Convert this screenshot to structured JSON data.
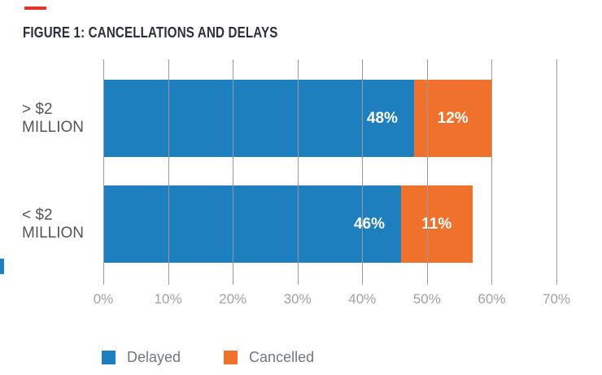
{
  "title": "FIGURE 1: CANCELLATIONS AND DELAYS",
  "colors": {
    "delayed": "#1E7FBF",
    "cancelled": "#F0712C",
    "title": "#2B2F3A",
    "category": "#53575C",
    "grid": "#97999B",
    "tick": "#9EA1A5",
    "legend_text": "#73777C",
    "red_dash": "#E8332B"
  },
  "chart_data": {
    "type": "bar",
    "orientation": "horizontal",
    "stacked": true,
    "title": "FIGURE 1: CANCELLATIONS AND DELAYS",
    "categories": [
      "> $2 MILLION",
      "< $2 MILLION"
    ],
    "series": [
      {
        "name": "Delayed",
        "color": "#1E7FBF",
        "values": [
          48,
          46
        ]
      },
      {
        "name": "Cancelled",
        "color": "#F0712C",
        "values": [
          12,
          11
        ]
      }
    ],
    "rows": [
      {
        "label_line1": "> $2",
        "label_line2": "MILLION",
        "delayed": 48,
        "delayed_label": "48%",
        "cancelled": 12,
        "cancelled_label": "12%"
      },
      {
        "label_line1": "< $2",
        "label_line2": "MILLION",
        "delayed": 46,
        "delayed_label": "46%",
        "cancelled": 11,
        "cancelled_label": "11%"
      }
    ],
    "x_ticks": [
      "0%",
      "10%",
      "20%",
      "30%",
      "40%",
      "50%",
      "60%",
      "70%"
    ],
    "xlim": [
      0,
      70
    ],
    "grid": true,
    "legend": {
      "delayed_label": "Delayed",
      "cancelled_label": "Cancelled",
      "position": "bottom"
    }
  }
}
